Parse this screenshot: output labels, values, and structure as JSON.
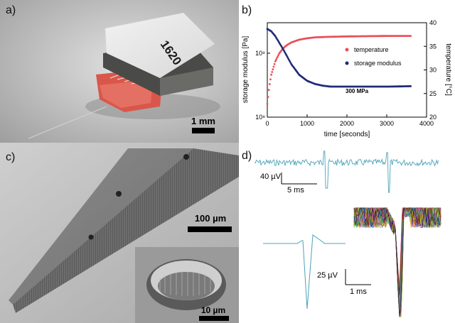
{
  "panels": {
    "a": {
      "label": "a)",
      "device_text": "1620",
      "scale_label": "1 mm"
    },
    "b": {
      "label": "b)",
      "annotation": "300 MPa"
    },
    "c": {
      "label": "c)",
      "scale_main": "100 µm",
      "scale_inset": "10 µm"
    },
    "d": {
      "label": "d)",
      "top_scale_v": "40 µV",
      "top_scale_t": "5 ms",
      "bottom_scale_v": "25 µV",
      "bottom_scale_t": "1 ms"
    }
  },
  "colors": {
    "temperature": "#e8505a",
    "storage_modulus": "#1f2a78",
    "trace": "#4aa3b8"
  },
  "chart_data": {
    "type": "line",
    "x": {
      "label": "time [seconds]",
      "range": [
        0,
        4000
      ],
      "ticks": [
        "0",
        "1000",
        "2000",
        "3000",
        "4000"
      ]
    },
    "y_left": {
      "label": "storage modulus [Pa]",
      "scale": "log",
      "ticks": [
        "10⁸",
        "10⁹"
      ]
    },
    "y_right": {
      "label": "temperature [°C]",
      "range": [
        20,
        40
      ],
      "ticks": [
        "20",
        "25",
        "30",
        "35",
        "40"
      ]
    },
    "legend": [
      "temperature",
      "storage modulus"
    ],
    "legend_position": "center-right",
    "series": [
      {
        "name": "temperature",
        "axis": "right",
        "x": [
          0,
          50,
          100,
          200,
          300,
          400,
          500,
          600,
          800,
          1000,
          1200,
          1500,
          2000,
          2500,
          3000,
          3600
        ],
        "y": [
          22.8,
          26.5,
          29.0,
          31.8,
          33.5,
          34.6,
          35.3,
          35.8,
          36.4,
          36.7,
          36.9,
          37.0,
          37.1,
          37.15,
          37.2,
          37.2
        ]
      },
      {
        "name": "storage modulus",
        "axis": "left",
        "x": [
          0,
          100,
          200,
          400,
          600,
          800,
          1000,
          1200,
          1400,
          1600,
          2000,
          2500,
          3000,
          3600
        ],
        "y": [
          2400000000.0,
          2200000000.0,
          1850000000.0,
          1150000000.0,
          680000000.0,
          460000000.0,
          370000000.0,
          330000000.0,
          310000000.0,
          300000000.0,
          300000000.0,
          300000000.0,
          300000000.0,
          305000000.0
        ]
      }
    ]
  }
}
